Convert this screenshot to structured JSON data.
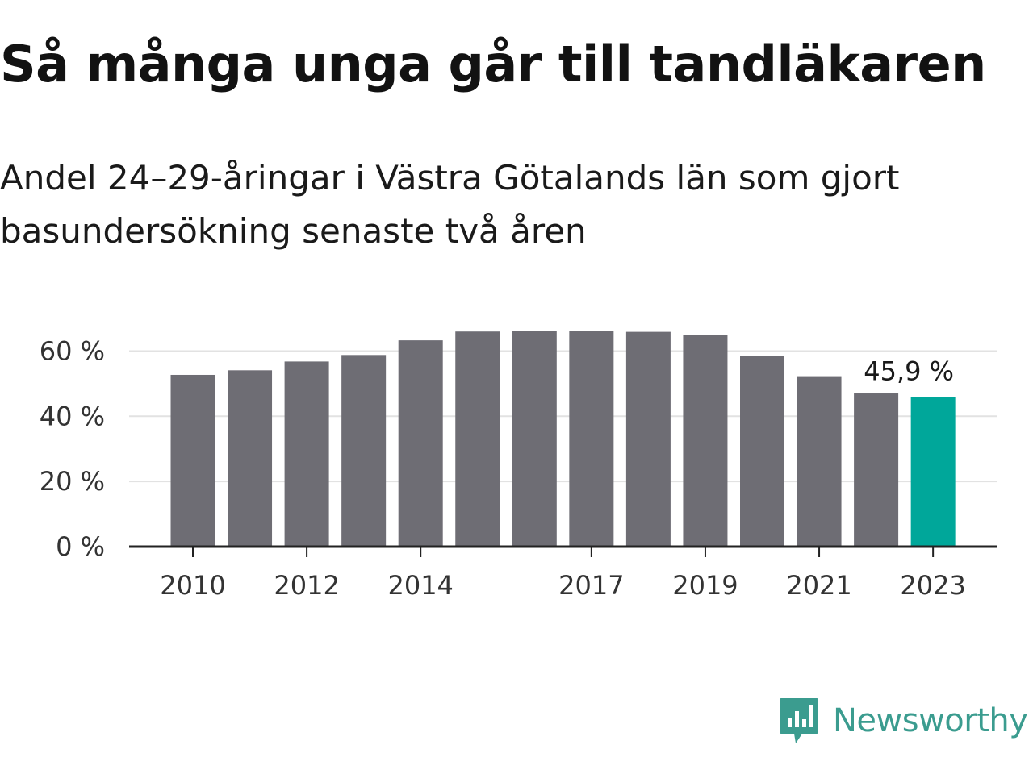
{
  "title": "Så många unga går till tandläkaren",
  "subtitle": "Andel 24–29-åringar i Västra Götalands län som gjort basundersökning senaste två åren",
  "colors": {
    "bar": "#6e6d74",
    "highlight": "#00a79a",
    "grid": "#e2e2e2",
    "axis": "#222222",
    "brand": "#3b9c8f"
  },
  "chart_data": {
    "type": "bar",
    "categories": [
      "2010",
      "2011",
      "2012",
      "2013",
      "2014",
      "2015",
      "2016",
      "2017",
      "2018",
      "2019",
      "2020",
      "2021",
      "2022",
      "2023"
    ],
    "values": [
      52.7,
      54.1,
      56.8,
      58.8,
      63.3,
      66.0,
      66.3,
      66.1,
      65.9,
      64.9,
      58.6,
      52.3,
      47.0,
      45.9
    ],
    "x_tick_labels": [
      "2010",
      "2012",
      "2014",
      "2017",
      "2019",
      "2021",
      "2023"
    ],
    "y_ticks": [
      0,
      20,
      40,
      60
    ],
    "y_tick_labels": [
      "0 %",
      "20 %",
      "40 %",
      "60 %"
    ],
    "ylim": [
      0,
      66.3
    ],
    "highlight_category": "2023",
    "annotation": "45,9 %",
    "xlabel": "",
    "ylabel": "",
    "grid": true,
    "legend": "none"
  },
  "brand": {
    "name": "Newsworthy",
    "icon": "newsworthy-logo-icon"
  }
}
